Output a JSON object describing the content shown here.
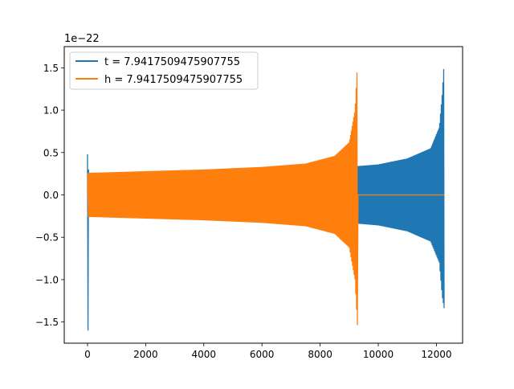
{
  "chart_data": {
    "type": "line",
    "title": "",
    "xlabel": "",
    "ylabel": "",
    "y_offset_label": "1e−22",
    "xlim": [
      -800,
      12900
    ],
    "ylim": [
      -1.75,
      1.75
    ],
    "x_ticks": [
      0,
      2000,
      4000,
      6000,
      8000,
      10000,
      12000
    ],
    "x_tick_labels": [
      "0",
      "2000",
      "4000",
      "6000",
      "8000",
      "10000",
      "12000"
    ],
    "y_ticks": [
      -1.5,
      -1.0,
      -0.5,
      0.0,
      0.5,
      1.0,
      1.5
    ],
    "y_tick_labels": [
      "−1.5",
      "−1.0",
      "−0.5",
      "0.0",
      "0.5",
      "1.0",
      "1.5"
    ],
    "grid": false,
    "legend_position": "top-left",
    "series": [
      {
        "name": "t = 7.9417509475907755",
        "color": "#1f77b4",
        "description": "oscillatory signal: start transient then envelope growing toward merger at end",
        "x_start": 0,
        "x_end": 12270,
        "initial_spike_max": 0.48,
        "initial_spike_min": -1.6,
        "envelope_x": [
          0,
          2000,
          4000,
          6000,
          8000,
          9290,
          10000,
          11000,
          11800,
          12100,
          12200,
          12270
        ],
        "envelope_upper": [
          0.25,
          0.27,
          0.29,
          0.31,
          0.33,
          0.34,
          0.36,
          0.43,
          0.55,
          0.8,
          1.2,
          1.6
        ],
        "envelope_lower": [
          -0.25,
          -0.27,
          -0.29,
          -0.31,
          -0.33,
          -0.34,
          -0.36,
          -0.43,
          -0.55,
          -0.8,
          -1.2,
          -1.35
        ]
      },
      {
        "name": "h = 7.9417509475907755",
        "color": "#ff7f0e",
        "description": "oscillatory signal with envelope growing toward merger, then flat zero",
        "x_start": 0,
        "x_end": 12270,
        "merger_x": 9290,
        "envelope_x": [
          30,
          2000,
          4000,
          6000,
          7500,
          8500,
          9000,
          9200,
          9290
        ],
        "envelope_upper": [
          0.26,
          0.28,
          0.3,
          0.33,
          0.37,
          0.46,
          0.62,
          1.0,
          1.6
        ],
        "envelope_lower": [
          -0.26,
          -0.28,
          -0.3,
          -0.33,
          -0.37,
          -0.46,
          -0.62,
          -1.0,
          -1.6
        ],
        "post_merger_value": 0.0
      }
    ]
  }
}
